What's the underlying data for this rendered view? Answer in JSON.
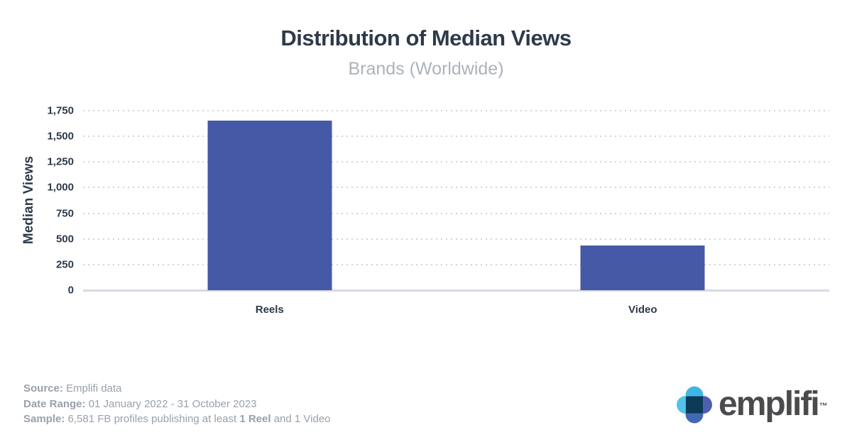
{
  "header": {
    "title": "Distribution of Median Views",
    "subtitle": "Brands (Worldwide)"
  },
  "chart_data": {
    "type": "bar",
    "title": "Distribution of Median Views",
    "subtitle": "Brands (Worldwide)",
    "categories": [
      "Reels",
      "Video"
    ],
    "values": [
      1655,
      437
    ],
    "xlabel": "",
    "ylabel": "Median Views",
    "ylim": [
      0,
      1750
    ],
    "yticks": [
      0,
      250,
      500,
      750,
      1000,
      1250,
      1500,
      1750
    ],
    "ytick_labels": [
      "0",
      "250",
      "500",
      "750",
      "1,000",
      "1,250",
      "1,500",
      "1,750"
    ],
    "grid": "horizontal dotted",
    "legend_position": "none",
    "bar_color": "#4659a6",
    "axis_text_color": "#2d3a4a",
    "gridline_color": "#d4d4d6",
    "baseline_color": "#d6dae1"
  },
  "footer": {
    "source_label": "Source:",
    "source_value": " Emplifi data",
    "date_range_label": "Date Range:",
    "date_range_value": " 01 January 2022 - 31 October 2023",
    "sample_label": "Sample:",
    "sample_value_prefix": " 6,581 FB profiles publishing at least ",
    "sample_value_bold": "1 Reel",
    "sample_value_suffix": " and 1 Video"
  },
  "logo": {
    "wordmark": "emplifi",
    "trademark": "™",
    "colors": {
      "top_petal": "#3fb7e4",
      "left_petal": "#53c3ea",
      "right_petal": "#4d5fae",
      "bottom_petal": "#4168b5",
      "center_square": "#0d3a56"
    },
    "wordmark_color": "#4b4b4d"
  }
}
